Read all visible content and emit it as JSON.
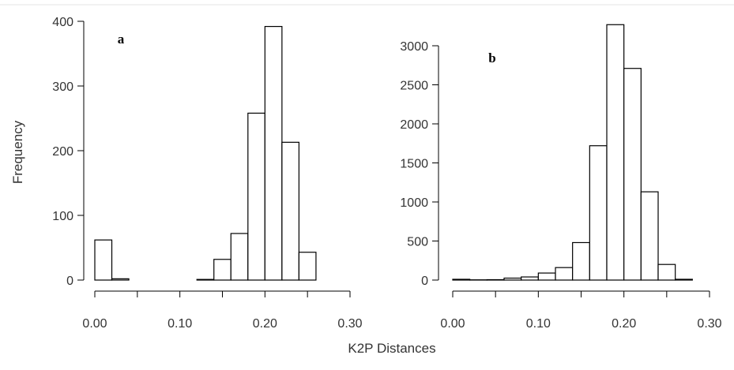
{
  "figure": {
    "xlabel": "K2P Distances",
    "ylabel": "Frequency"
  },
  "chart_data": [
    {
      "type": "bar",
      "panel_label": "a",
      "bin_edges": [
        0.0,
        0.02,
        0.04,
        0.06,
        0.08,
        0.1,
        0.12,
        0.14,
        0.16,
        0.18,
        0.2,
        0.22,
        0.24,
        0.26
      ],
      "values": [
        62,
        2,
        0,
        0,
        0,
        0,
        1,
        32,
        72,
        258,
        392,
        213,
        43
      ],
      "xlim": [
        0.0,
        0.3
      ],
      "ylim": [
        0,
        400
      ],
      "xticks": [
        0.0,
        0.05,
        0.1,
        0.15,
        0.2,
        0.25,
        0.3
      ],
      "xtick_labels": [
        "0.00",
        "",
        "0.10",
        "",
        "0.20",
        "",
        "0.30"
      ],
      "yticks": [
        0,
        100,
        200,
        300,
        400
      ],
      "ytick_labels": [
        "0",
        "100",
        "200",
        "300",
        "400"
      ],
      "xlabel": "",
      "ylabel": "Frequency",
      "grid": false,
      "legend": "none"
    },
    {
      "type": "bar",
      "panel_label": "b",
      "bin_edges": [
        0.0,
        0.02,
        0.04,
        0.06,
        0.08,
        0.1,
        0.12,
        0.14,
        0.16,
        0.18,
        0.2,
        0.22,
        0.24,
        0.26,
        0.28
      ],
      "values": [
        10,
        3,
        5,
        25,
        40,
        90,
        160,
        480,
        1720,
        3270,
        2710,
        1130,
        200,
        10
      ],
      "xlim": [
        0.0,
        0.3
      ],
      "ylim": [
        0,
        3000
      ],
      "xticks": [
        0.0,
        0.05,
        0.1,
        0.15,
        0.2,
        0.25,
        0.3
      ],
      "xtick_labels": [
        "0.00",
        "",
        "0.10",
        "",
        "0.20",
        "",
        "0.30"
      ],
      "yticks": [
        0,
        500,
        1000,
        1500,
        2000,
        2500,
        3000
      ],
      "ytick_labels": [
        "0",
        "500",
        "1000",
        "1500",
        "2000",
        "2500",
        "3000"
      ],
      "xlabel": "",
      "ylabel": "",
      "grid": false,
      "legend": "none"
    }
  ]
}
